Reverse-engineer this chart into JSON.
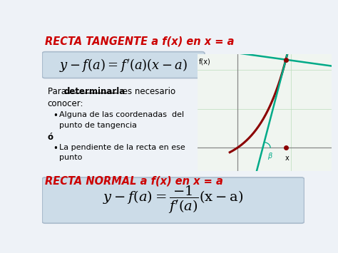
{
  "bg_color": "#eef2f7",
  "title1": "RECTA TANGENTE a f(x) en x = a",
  "title1_color": "#cc0000",
  "formula1_box_color": "#ccdce8",
  "title2": "RECTA NORMAL a f(x) en x = a",
  "title2_color": "#cc0000",
  "formula2_box_color": "#ccdce8",
  "body_underline": "determinarla",
  "bullet1a": "Alguna de las coordenadas  del",
  "bullet1b": "punto de tangencia",
  "bullet_o": "ó",
  "bullet2a": "La pendiente de la recta en ese",
  "bullet2b": "punto",
  "curve_color": "#8b0000",
  "tangent_color": "#00aa88",
  "axis_color": "#888888",
  "label_fx": "f(x)",
  "label_x": "x",
  "label_beta": "β"
}
